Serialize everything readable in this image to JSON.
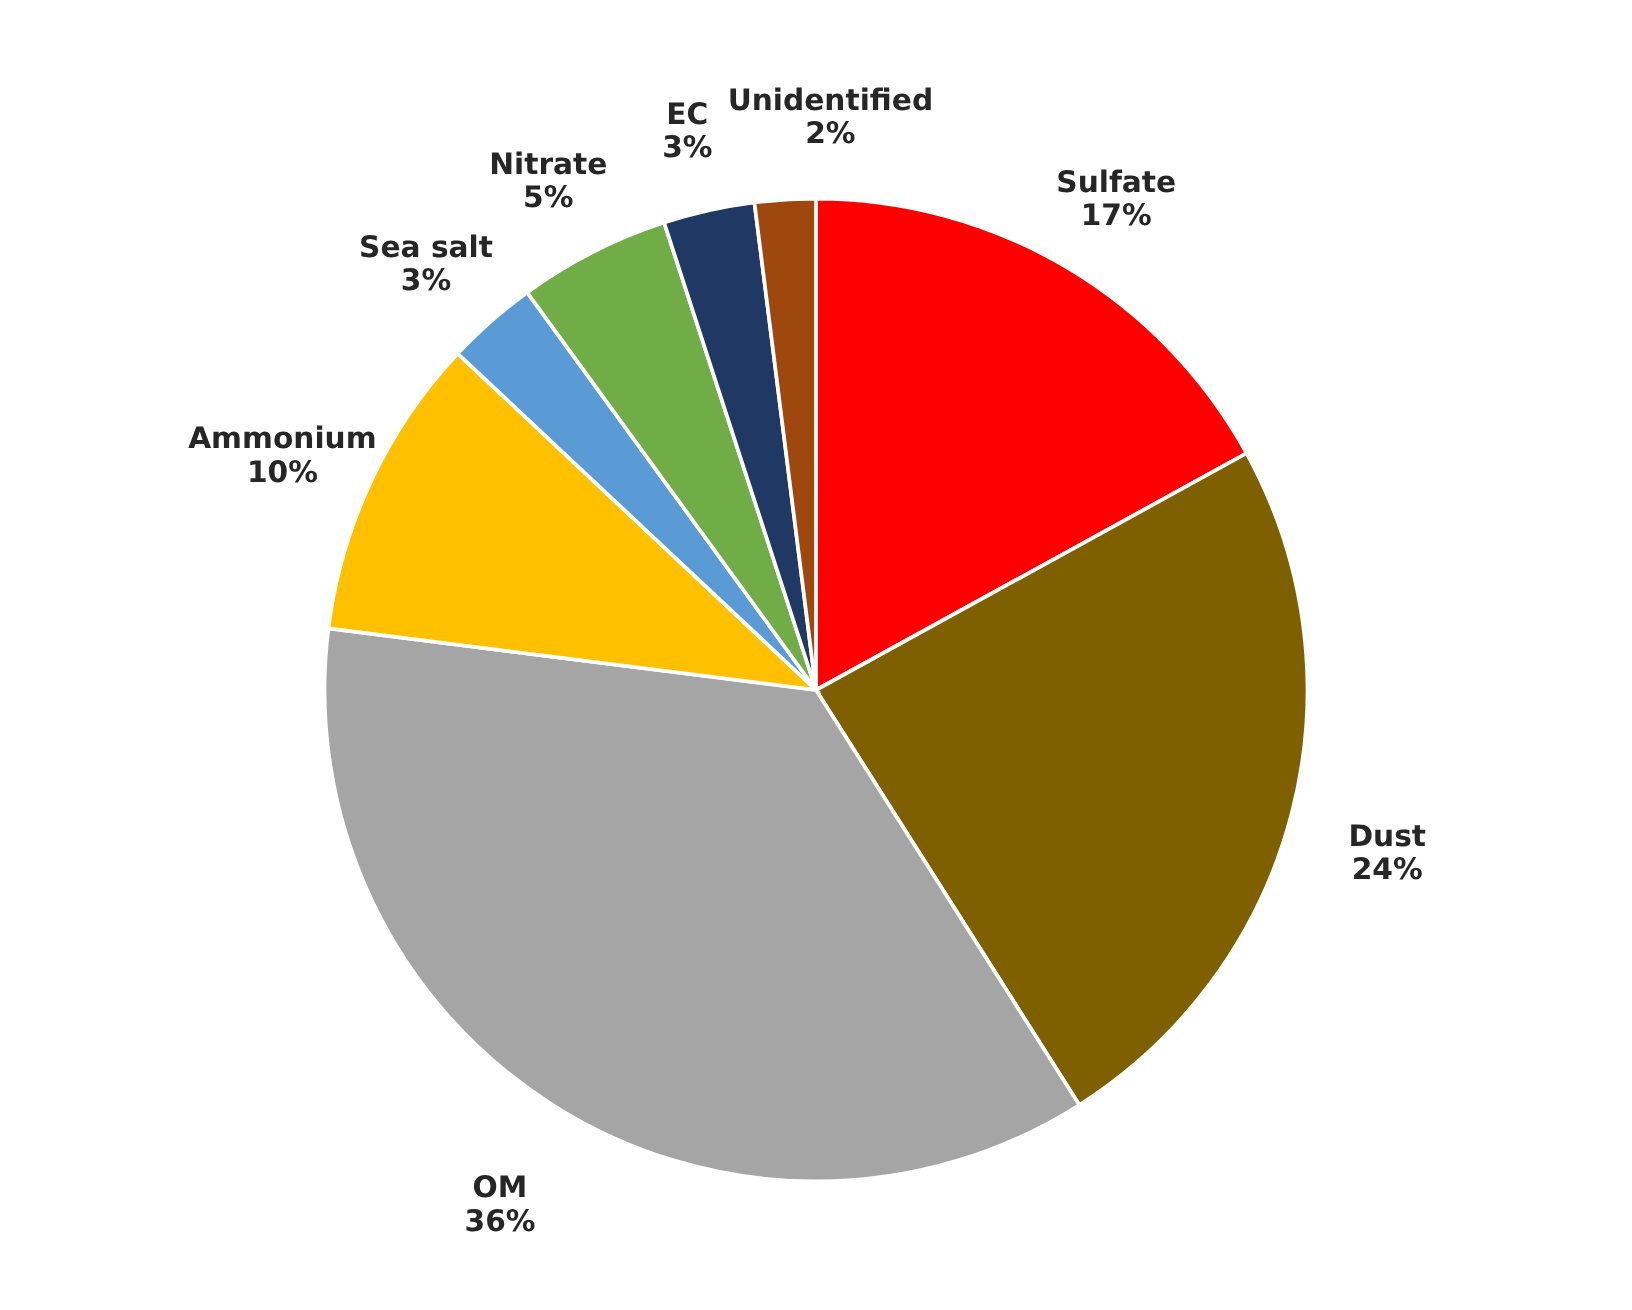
{
  "chart_data": {
    "type": "pie",
    "categories": [
      "Sulfate",
      "Dust",
      "OM",
      "Ammonium",
      "Sea salt",
      "Nitrate",
      "EC",
      "Unidentified"
    ],
    "values": [
      17,
      24,
      36,
      10,
      3,
      5,
      3,
      2
    ],
    "value_labels": [
      "17%",
      "24%",
      "36%",
      "10%",
      "3%",
      "5%",
      "3%",
      "2%"
    ],
    "colors": [
      "#ff0000",
      "#7f6000",
      "#a5a5a5",
      "#ffc000",
      "#5b9bd5",
      "#70ad47",
      "#203864",
      "#9e480e"
    ]
  }
}
